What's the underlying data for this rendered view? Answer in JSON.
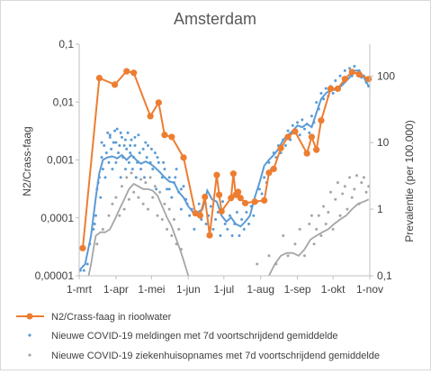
{
  "chart_data": {
    "type": "line",
    "title": "Amsterdam",
    "ylabel": "N2/Crass-faag",
    "y2label": "Prevalentie (per 100.000)",
    "xlabel": "",
    "ylim": [
      1e-05,
      0.1
    ],
    "y2lim": [
      0.1,
      300
    ],
    "yscale": "log",
    "y2scale": "log",
    "x_ticks": [
      "1-mrt",
      "1-apr",
      "1-mei",
      "1-jun",
      "1-jul",
      "1-aug",
      "1-sep",
      "1-okt",
      "1-nov"
    ],
    "x_tick_days": [
      0,
      31,
      61,
      92,
      122,
      153,
      184,
      214,
      245
    ],
    "x_range_days": [
      0,
      245
    ],
    "y_ticks": [
      "0,00001",
      "0,0001",
      "0,001",
      "0,01",
      "0,1"
    ],
    "y_tick_values": [
      1e-05,
      0.0001,
      0.001,
      0.01,
      0.1
    ],
    "y2_ticks": [
      "0,1",
      "1",
      "10",
      "100"
    ],
    "y2_tick_values": [
      0.1,
      1,
      10,
      100
    ],
    "gridlines": false,
    "legend_position": "bottom",
    "colors": {
      "sewage": "#ED7D31",
      "cases": "#5B9BD5",
      "hospital": "#A5A5A5"
    },
    "series": [
      {
        "name": "N2/Crass-faag in rioolwater",
        "axis": "left",
        "style": "line-markers",
        "x": [
          3,
          17,
          30,
          40,
          46,
          60,
          67,
          72,
          78,
          88,
          98,
          102,
          106,
          110,
          116,
          118,
          120,
          128,
          130,
          132,
          134,
          136,
          140,
          148,
          156,
          160,
          164,
          170,
          176,
          182,
          192,
          196,
          200,
          204,
          212,
          218,
          224,
          230,
          236,
          244
        ],
        "values": [
          3e-05,
          0.026,
          0.02,
          0.034,
          0.032,
          0.0057,
          0.0098,
          0.0027,
          0.0025,
          0.0011,
          0.00012,
          0.00011,
          0.00023,
          5e-05,
          0.00055,
          0.00025,
          0.00013,
          0.00022,
          0.00058,
          0.00025,
          0.00028,
          0.00022,
          0.00018,
          0.00019,
          0.0002,
          0.0006,
          0.0007,
          0.0016,
          0.0025,
          0.0031,
          0.0013,
          0.0025,
          0.0015,
          0.0048,
          0.017,
          0.017,
          0.025,
          0.033,
          0.03,
          0.025
        ]
      },
      {
        "name": "Nieuwe COVID-19 meldingen met 7d voortschrijdend gemiddelde",
        "axis": "right",
        "style": "dots-line",
        "x": [
          0,
          5,
          10,
          14,
          17,
          20,
          24,
          28,
          32,
          36,
          40,
          44,
          48,
          52,
          56,
          60,
          64,
          68,
          72,
          76,
          80,
          84,
          88,
          92,
          96,
          100,
          104,
          108,
          112,
          116,
          120,
          124,
          128,
          132,
          136,
          140,
          144,
          148,
          152,
          156,
          160,
          164,
          168,
          172,
          176,
          180,
          184,
          188,
          192,
          196,
          200,
          204,
          208,
          212,
          216,
          220,
          224,
          228,
          232,
          236,
          240,
          244
        ],
        "values": [
          0.12,
          0.15,
          0.4,
          1.5,
          3.5,
          5.5,
          6,
          6.2,
          5.8,
          6.5,
          5.5,
          6.5,
          5.5,
          4.8,
          5.2,
          4.8,
          4.2,
          3.6,
          3,
          2.6,
          2.5,
          1.8,
          1.5,
          1.1,
          0.9,
          0.9,
          1,
          1.9,
          1.4,
          1.3,
          0.8,
          0.65,
          0.75,
          0.6,
          0.55,
          0.65,
          0.8,
          1.5,
          2.5,
          4.5,
          5.5,
          6.5,
          8,
          11,
          13,
          15,
          18,
          17,
          19,
          17,
          28,
          45,
          55,
          62,
          62,
          68,
          80,
          95,
          120,
          120,
          95,
          70
        ]
      },
      {
        "name": "Nieuwe COVID-19 ziekenhuisopnames met 7d voortschrijdend gemiddelde",
        "axis": "right",
        "style": "dots-line",
        "x": [
          8,
          10,
          12,
          14,
          18,
          22,
          26,
          30,
          34,
          38,
          42,
          46,
          50,
          54,
          58,
          62,
          66,
          70,
          74,
          78,
          82,
          86,
          89,
          92,
          160,
          165,
          170,
          175,
          180,
          185,
          190,
          195,
          200,
          205,
          210,
          215,
          220,
          225,
          230,
          235,
          240,
          244
        ],
        "values": [
          0.1,
          0.15,
          0.25,
          0.4,
          0.45,
          0.45,
          0.5,
          0.7,
          1.0,
          1.4,
          2.0,
          2.4,
          2.2,
          2.0,
          2.0,
          1.9,
          1.6,
          1.1,
          0.75,
          0.55,
          0.35,
          0.22,
          0.15,
          0.1,
          0.1,
          0.15,
          0.2,
          0.22,
          0.22,
          0.2,
          0.25,
          0.35,
          0.4,
          0.45,
          0.5,
          0.6,
          0.7,
          0.8,
          1.0,
          1.2,
          1.3,
          1.4
        ]
      }
    ],
    "scatter_dots": {
      "cases": {
        "axis": "right",
        "x": [
          1,
          4,
          7,
          9,
          12,
          14,
          15,
          17,
          18,
          19,
          20,
          21,
          22,
          23,
          24,
          25,
          26,
          27,
          28,
          29,
          30,
          31,
          32,
          33,
          34,
          35,
          36,
          37,
          38,
          39,
          40,
          41,
          42,
          43,
          44,
          45,
          46,
          47,
          48,
          49,
          50,
          52,
          54,
          55,
          57,
          58,
          60,
          62,
          64,
          65,
          67,
          70,
          72,
          74,
          76,
          78,
          80,
          82,
          84,
          86,
          88,
          90,
          93,
          95,
          97,
          99,
          101,
          103,
          105,
          107,
          109,
          111,
          113,
          115,
          117,
          119,
          121,
          123,
          125,
          127,
          129,
          131,
          133,
          135,
          137,
          139,
          141,
          143,
          145,
          147,
          150,
          152,
          154,
          156,
          158,
          160,
          162,
          164,
          166,
          168,
          170,
          172,
          174,
          176,
          178,
          180,
          182,
          184,
          186,
          188,
          190,
          192,
          194,
          196,
          198,
          200,
          202,
          204,
          206,
          208,
          210,
          212,
          214,
          216,
          218,
          220,
          222,
          224,
          226,
          228,
          230,
          232,
          234,
          236,
          238,
          240,
          242,
          244,
          13,
          16,
          19,
          26,
          31,
          35,
          39,
          43,
          47,
          51,
          56,
          61,
          66,
          71,
          76,
          81,
          86,
          91
        ],
        "values": [
          0.12,
          0.12,
          0.15,
          0.3,
          0.5,
          0.8,
          2,
          3,
          1.5,
          6,
          4,
          9,
          3,
          7,
          14,
          5,
          12,
          8,
          4,
          10,
          15,
          5,
          16,
          7,
          9,
          3,
          12,
          6,
          9,
          4,
          8,
          14,
          5,
          7,
          11,
          4,
          6,
          9,
          3,
          5,
          13,
          4,
          8,
          3,
          6,
          9,
          5,
          4,
          7,
          2,
          5,
          3,
          4,
          2,
          3,
          1.5,
          2.5,
          4,
          1.8,
          1,
          2.2,
          1.4,
          0.8,
          1,
          0.5,
          0.9,
          1.2,
          0.7,
          1.5,
          0.6,
          0.8,
          1.1,
          0.5,
          0.7,
          0.9,
          0.4,
          1.3,
          0.6,
          0.5,
          0.8,
          0.4,
          0.6,
          0.9,
          0.4,
          0.7,
          0.5,
          0.9,
          0.6,
          1.1,
          0.8,
          1.3,
          2,
          1.7,
          3,
          2.5,
          5,
          4,
          7,
          6,
          9,
          7,
          11,
          9,
          15,
          11,
          18,
          14,
          20,
          13,
          22,
          16,
          19,
          14,
          25,
          20,
          40,
          32,
          55,
          45,
          65,
          50,
          70,
          55,
          85,
          62,
          100,
          75,
          120,
          90,
          130,
          100,
          140,
          110,
          120,
          95,
          100,
          80,
          70,
          0.6,
          2.5,
          10,
          13,
          10,
          14,
          11,
          9,
          12,
          7,
          10,
          8,
          6,
          5,
          2,
          3,
          2,
          1.2
        ],
        "color": "#5B9BD5"
      },
      "hospital": {
        "axis": "right",
        "x": [
          15,
          20,
          25,
          28,
          31,
          34,
          36,
          38,
          40,
          42,
          44,
          46,
          48,
          50,
          52,
          54,
          56,
          58,
          60,
          62,
          64,
          66,
          68,
          70,
          72,
          74,
          76,
          78,
          80,
          82,
          84,
          86,
          150,
          160,
          166,
          172,
          176,
          182,
          186,
          190,
          194,
          196,
          198,
          200,
          202,
          204,
          206,
          208,
          210,
          212,
          214,
          216,
          218,
          220,
          222,
          224,
          226,
          228,
          230,
          232,
          234,
          236,
          238,
          240,
          242,
          244
        ],
        "values": [
          0.3,
          0.5,
          0.8,
          1.2,
          1.5,
          0.8,
          2.2,
          1,
          3,
          1.4,
          3.5,
          1.8,
          3,
          1.5,
          2.8,
          1.2,
          2.5,
          1,
          3,
          1.5,
          2.2,
          0.8,
          1.8,
          0.7,
          1.2,
          0.5,
          1.0,
          0.4,
          0.7,
          0.3,
          0.5,
          0.25,
          0.15,
          0.2,
          0.15,
          0.4,
          0.2,
          0.3,
          0.5,
          0.2,
          0.6,
          0.8,
          0.3,
          0.5,
          0.8,
          0.4,
          1.1,
          0.6,
          0.9,
          1.8,
          0.5,
          1.4,
          2.5,
          0.8,
          1.7,
          2.2,
          1.0,
          3,
          1.5,
          2.0,
          3.2,
          1.2,
          2.5,
          3,
          1.8,
          2.2
        ],
        "color": "#A5A5A5"
      }
    }
  }
}
